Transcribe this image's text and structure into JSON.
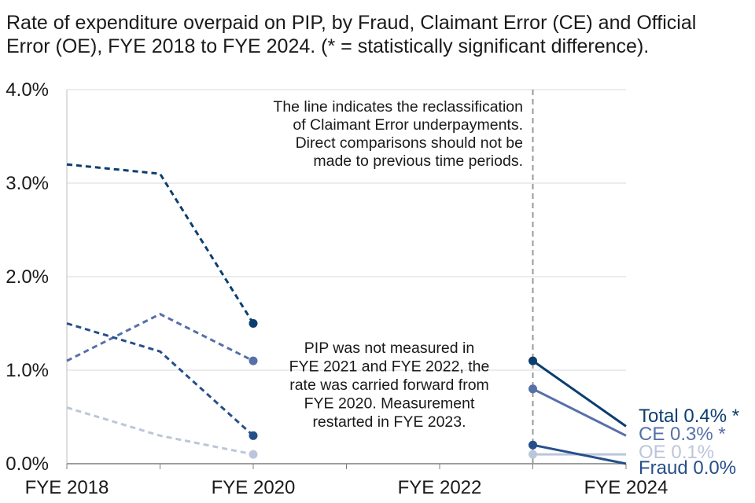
{
  "chart_data": {
    "type": "line",
    "title_lines": [
      "Rate of expenditure overpaid on PIP, by Fraud, Claimant Error (CE) and Official",
      "Error (OE), FYE 2018 to FYE 2024. (* = statistically significant difference)."
    ],
    "x_categories": [
      "FYE 2018",
      "FYE 2019",
      "FYE 2020",
      "FYE 2021",
      "FYE 2022",
      "FYE 2023",
      "FYE 2024"
    ],
    "x_tick_labels": [
      "FYE 2018",
      "FYE 2020",
      "FYE 2022",
      "FYE 2024"
    ],
    "y_tick_labels": [
      "0.0%",
      "1.0%",
      "2.0%",
      "3.0%",
      "4.0%"
    ],
    "ylim": [
      0,
      4.0
    ],
    "grid": true,
    "series": [
      {
        "name": "Total",
        "end_label": "Total 0.4% *",
        "color": "#0b3e6f",
        "dashed_segment": [
          {
            "x": "FYE 2018",
            "y": 3.2
          },
          {
            "x": "FYE 2019",
            "y": 3.1
          },
          {
            "x": "FYE 2020",
            "y": 1.5
          }
        ],
        "solid_segment": [
          {
            "x": "FYE 2023",
            "y": 1.1
          },
          {
            "x": "FYE 2024",
            "y": 0.4
          }
        ]
      },
      {
        "name": "CE",
        "end_label": "CE 0.3% *",
        "color": "#5670a8",
        "dashed_segment": [
          {
            "x": "FYE 2018",
            "y": 1.1
          },
          {
            "x": "FYE 2019",
            "y": 1.6
          },
          {
            "x": "FYE 2020",
            "y": 1.1
          }
        ],
        "solid_segment": [
          {
            "x": "FYE 2023",
            "y": 0.8
          },
          {
            "x": "FYE 2024",
            "y": 0.3
          }
        ]
      },
      {
        "name": "OE",
        "end_label": "OE 0.1%",
        "color": "#bcc6da",
        "dashed_segment": [
          {
            "x": "FYE 2018",
            "y": 0.6
          },
          {
            "x": "FYE 2019",
            "y": 0.3
          },
          {
            "x": "FYE 2020",
            "y": 0.1
          }
        ],
        "solid_segment": [
          {
            "x": "FYE 2023",
            "y": 0.1
          },
          {
            "x": "FYE 2024",
            "y": 0.1
          }
        ]
      },
      {
        "name": "Fraud",
        "end_label": "Fraud 0.0%",
        "color": "#264f8a",
        "dashed_segment": [
          {
            "x": "FYE 2018",
            "y": 1.5
          },
          {
            "x": "FYE 2019",
            "y": 1.2
          },
          {
            "x": "FYE 2020",
            "y": 0.3
          }
        ],
        "solid_segment": [
          {
            "x": "FYE 2023",
            "y": 0.2
          },
          {
            "x": "FYE 2024",
            "y": 0.0
          }
        ]
      }
    ],
    "reference_line": {
      "x": "FYE 2023",
      "style": "dashed",
      "color": "#999999"
    },
    "annotations": [
      {
        "id": "reclassification-note",
        "lines": [
          "The line indicates the reclassification",
          "of Claimant Error underpayments.",
          "Direct comparisons should not be",
          "made to previous time periods."
        ]
      },
      {
        "id": "not-measured-note",
        "lines": [
          "PIP was not measured in",
          "FYE 2021 and FYE 2022, the",
          "rate was carried forward from",
          "FYE 2020. Measurement",
          "restarted in FYE 2023."
        ]
      }
    ]
  }
}
